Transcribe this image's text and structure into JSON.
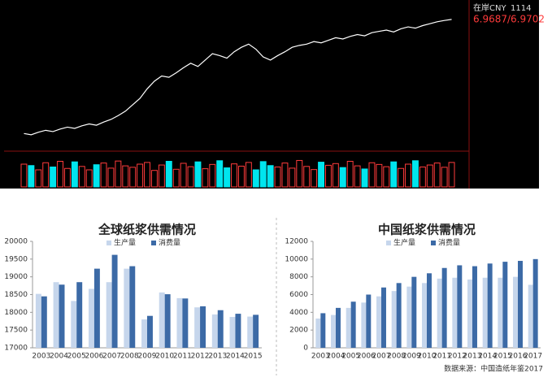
{
  "quote": {
    "name": "在岸CNY",
    "code": "1114",
    "price": "6.9687/6.9702"
  },
  "chart_data": [
    {
      "type": "price",
      "color": "#ffffff",
      "volume_color": "#00e5ee",
      "values": [
        6.79,
        6.788,
        6.792,
        6.795,
        6.793,
        6.797,
        6.8,
        6.798,
        6.802,
        6.805,
        6.803,
        6.808,
        6.812,
        6.818,
        6.825,
        6.835,
        6.845,
        6.86,
        6.872,
        6.88,
        6.878,
        6.885,
        6.893,
        6.9,
        6.895,
        6.905,
        6.915,
        6.912,
        6.908,
        6.918,
        6.925,
        6.93,
        6.922,
        6.91,
        6.905,
        6.912,
        6.918,
        6.925,
        6.928,
        6.93,
        6.934,
        6.932,
        6.936,
        6.94,
        6.938,
        6.942,
        6.945,
        6.943,
        6.948,
        6.95,
        6.952,
        6.949,
        6.954,
        6.957,
        6.955,
        6.959,
        6.962,
        6.965,
        6.967,
        6.9687
      ],
      "ylim": [
        6.77,
        6.98
      ],
      "volume": [
        80,
        75,
        60,
        85,
        70,
        90,
        65,
        88,
        72,
        60,
        78,
        84,
        66,
        91,
        74,
        69,
        80,
        86,
        58,
        77,
        90,
        62,
        83,
        71,
        88,
        64,
        79,
        92,
        67,
        81,
        73,
        86,
        60,
        89,
        75,
        70,
        84,
        66,
        93,
        72,
        61,
        87,
        76,
        82,
        68,
        90,
        74,
        63,
        85,
        79,
        71,
        88,
        65,
        80,
        92,
        70,
        77,
        84,
        69,
        86
      ],
      "y2lim": [
        0,
        100
      ]
    },
    {
      "type": "bar",
      "title": "全球纸浆供需情况",
      "categories": [
        "2003",
        "2004",
        "2005",
        "2006",
        "2007",
        "2008",
        "2009",
        "2010",
        "2011",
        "2012",
        "2013",
        "2014",
        "2015"
      ],
      "series": [
        {
          "name": "生产量",
          "color": "#c6d6ec",
          "values": [
            18520,
            18850,
            18320,
            18660,
            18850,
            19230,
            17800,
            18560,
            18400,
            18140,
            17940,
            17870,
            17880
          ]
        },
        {
          "name": "消费量",
          "color": "#3c6aa6",
          "values": [
            18450,
            18780,
            18850,
            19230,
            19620,
            19300,
            17900,
            18510,
            18390,
            18170,
            18060,
            17960,
            17930
          ]
        }
      ],
      "ylim": [
        17000,
        20000
      ],
      "yticks": [
        17000,
        17500,
        18000,
        18500,
        19000,
        19500,
        20000
      ]
    },
    {
      "type": "bar",
      "title": "中国纸浆供需情况",
      "categories": [
        "2003",
        "2004",
        "2005",
        "2006",
        "2007",
        "2008",
        "2009",
        "2010",
        "2011",
        "2012",
        "2013",
        "2014",
        "2015",
        "2016",
        "2017"
      ],
      "series": [
        {
          "name": "生产量",
          "color": "#c6d6ec",
          "values": [
            3300,
            3700,
            4500,
            5100,
            5800,
            6400,
            6900,
            7300,
            7800,
            7900,
            7700,
            7900,
            7900,
            8000,
            7100
          ]
        },
        {
          "name": "消费量",
          "color": "#3c6aa6",
          "values": [
            3900,
            4500,
            5200,
            6000,
            6800,
            7300,
            8000,
            8400,
            9000,
            9300,
            9200,
            9500,
            9700,
            9800,
            10000
          ]
        }
      ],
      "ylim": [
        0,
        12000
      ],
      "yticks": [
        0,
        2000,
        4000,
        6000,
        8000,
        10000,
        12000
      ],
      "source": "数据来源：中国造纸年鉴2017"
    }
  ]
}
